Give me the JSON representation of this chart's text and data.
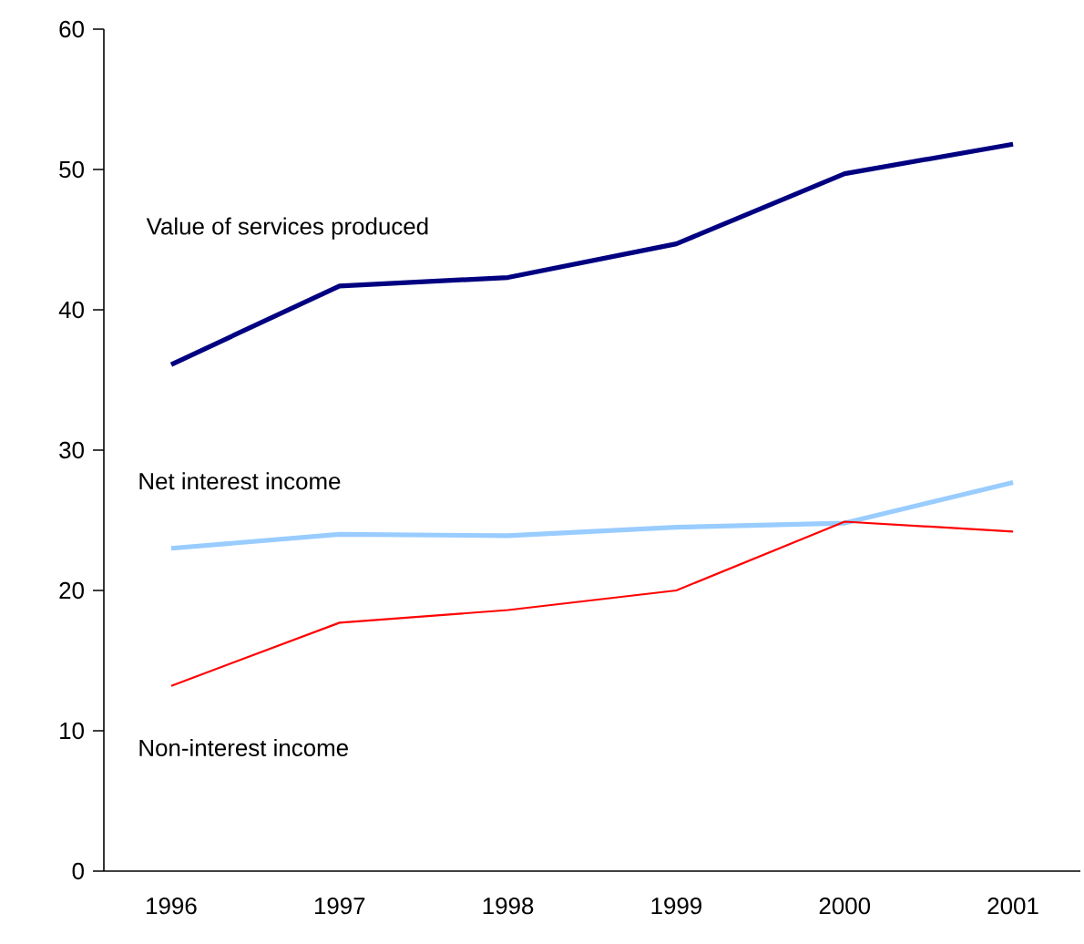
{
  "chart_data": {
    "type": "line",
    "categories": [
      "1996",
      "1997",
      "1998",
      "1999",
      "2000",
      "2001"
    ],
    "series": [
      {
        "name": "Value of services produced",
        "color": "#000080",
        "values": [
          36.1,
          41.7,
          42.3,
          44.7,
          49.7,
          51.8
        ]
      },
      {
        "name": "Net interest income",
        "color": "#99ccff",
        "values": [
          23.0,
          24.0,
          23.9,
          24.5,
          24.8,
          27.7
        ]
      },
      {
        "name": "Non-interest income",
        "color": "#ff0000",
        "values": [
          13.2,
          17.7,
          18.6,
          20.0,
          24.9,
          24.2
        ]
      }
    ],
    "ylim": [
      0,
      60
    ],
    "yticks": [
      0,
      10,
      20,
      30,
      40,
      50,
      60
    ]
  }
}
